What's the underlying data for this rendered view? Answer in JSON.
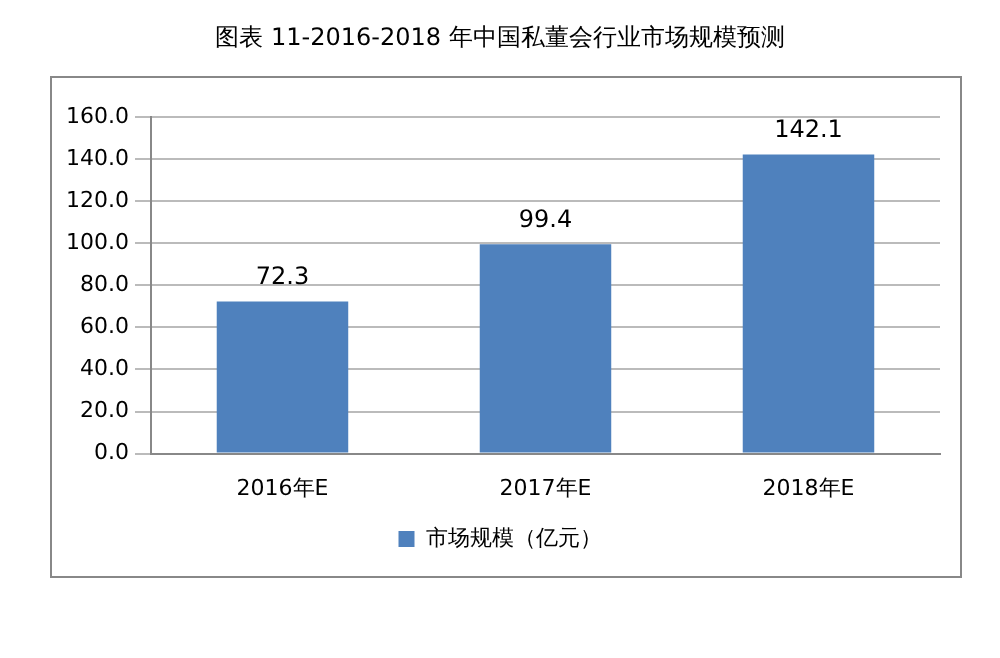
{
  "chart_data": {
    "type": "bar",
    "title": "图表 11-2016-2018 年中国私董会行业市场规模预测",
    "categories": [
      "2016年E",
      "2017年E",
      "2018年E"
    ],
    "series": [
      {
        "name": "市场规模（亿元）",
        "color": "#4f81bd",
        "values": [
          72.3,
          99.4,
          142.1
        ]
      }
    ],
    "ylim": [
      0,
      160
    ],
    "yticks": [
      {
        "value": 0,
        "label": "0.0"
      },
      {
        "value": 20,
        "label": "20.0"
      },
      {
        "value": 40,
        "label": "40.0"
      },
      {
        "value": 60,
        "label": "60.0"
      },
      {
        "value": 80,
        "label": "80.0"
      },
      {
        "value": 100,
        "label": "100.0"
      },
      {
        "value": 120,
        "label": "120.0"
      },
      {
        "value": 140,
        "label": "140.0"
      },
      {
        "value": 160,
        "label": "160.0"
      }
    ],
    "grid": "y",
    "legend": "bottom",
    "data_labels": true
  }
}
